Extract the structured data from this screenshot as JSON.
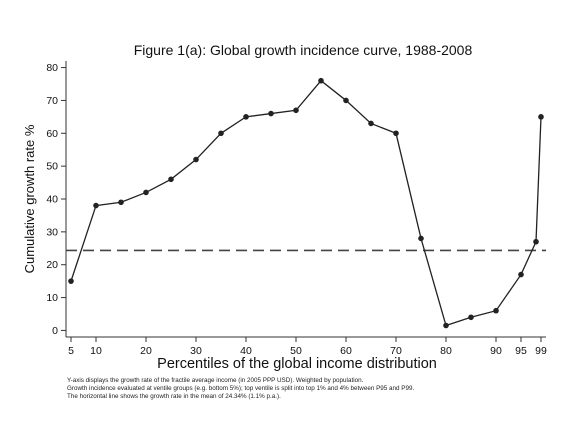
{
  "chart_data": {
    "type": "line",
    "title": "Figure 1(a): Global growth incidence curve, 1988-2008",
    "xlabel": "Percentiles of the global income distribution",
    "ylabel": "Cumulative growth rate %",
    "xlim": [
      4,
      100
    ],
    "ylim": [
      -2,
      82
    ],
    "x_ticks": [
      5,
      10,
      20,
      30,
      40,
      50,
      60,
      70,
      80,
      90,
      95,
      99
    ],
    "y_ticks": [
      0,
      10,
      20,
      30,
      40,
      50,
      60,
      70,
      80
    ],
    "grid": false,
    "series": [
      {
        "x": [
          5,
          10,
          15,
          20,
          25,
          30,
          35,
          40,
          45,
          50,
          55,
          60,
          65,
          70,
          75,
          80,
          85,
          90,
          95,
          98,
          99
        ],
        "y": [
          15,
          38,
          39,
          42,
          46,
          52,
          60,
          65,
          66,
          67,
          76,
          70,
          63,
          60,
          28,
          1.5,
          4,
          6,
          17,
          27,
          65
        ],
        "color": "#222222",
        "marker": "circle"
      }
    ],
    "reference_line": {
      "y": 24.34,
      "style": "dashed",
      "color": "#444444"
    },
    "notes": [
      "Y-axis displays the growth rate of the fractile average income (in 2005 PPP USD). Weighted by population.",
      "Growth incidence evaluated at ventile groups (e.g. bottom 5%); top ventile is split into top 1% and 4% between P95 and P99.",
      "The horizontal line shows the growth rate in the mean of 24.34% (1.1% p.a.)."
    ]
  }
}
